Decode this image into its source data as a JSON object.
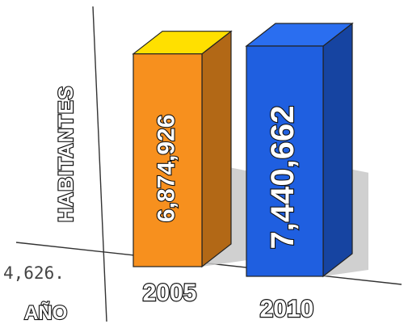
{
  "chart_data": {
    "type": "bar",
    "categories": [
      "2005",
      "2010"
    ],
    "values": [
      6874926,
      7440662
    ],
    "value_labels": [
      "6,874,926",
      "7,440,662"
    ],
    "xlabel": "AÑO",
    "ylabel": "HABITANTES",
    "partial_label": "4,626.",
    "colors": [
      "#f7901e",
      "#1f5fe0"
    ],
    "top_colors": [
      "#ffe000",
      "#2a6ef0"
    ],
    "grid": false
  }
}
